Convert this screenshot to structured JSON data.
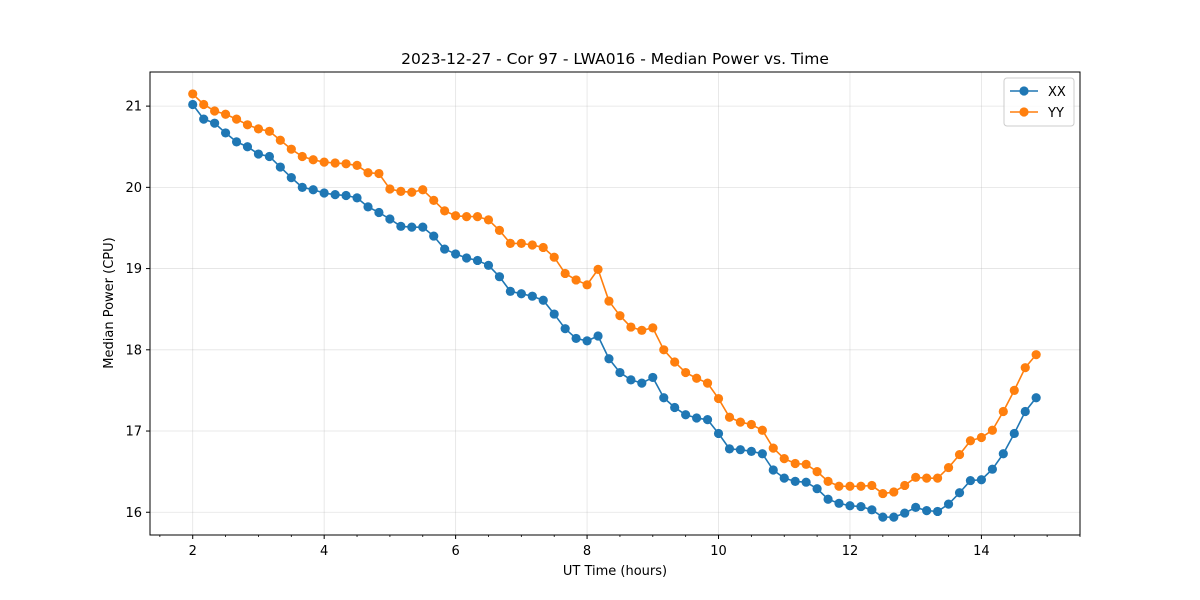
{
  "chart_data": {
    "type": "line",
    "title": "2023-12-27 - Cor 97 - LWA016 - Median Power vs. Time",
    "xlabel": "UT Time (hours)",
    "ylabel": "Median Power (CPU)",
    "xlim": [
      1.35,
      15.5
    ],
    "ylim": [
      15.72,
      21.42
    ],
    "xticks": [
      2,
      4,
      6,
      8,
      10,
      12,
      14
    ],
    "yticks": [
      16,
      17,
      18,
      19,
      20,
      21
    ],
    "grid": true,
    "legend_position": "top-right",
    "x": [
      2.0,
      2.167,
      2.333,
      2.5,
      2.667,
      2.833,
      3.0,
      3.167,
      3.333,
      3.5,
      3.667,
      3.833,
      4.0,
      4.167,
      4.333,
      4.5,
      4.667,
      4.833,
      5.0,
      5.167,
      5.333,
      5.5,
      5.667,
      5.833,
      6.0,
      6.167,
      6.333,
      6.5,
      6.667,
      6.833,
      7.0,
      7.167,
      7.333,
      7.5,
      7.667,
      7.833,
      8.0,
      8.167,
      8.333,
      8.5,
      8.667,
      8.833,
      9.0,
      9.167,
      9.333,
      9.5,
      9.667,
      9.833,
      10.0,
      10.167,
      10.333,
      10.5,
      10.667,
      10.833,
      11.0,
      11.167,
      11.333,
      11.5,
      11.667,
      11.833,
      12.0,
      12.167,
      12.333,
      12.5,
      12.667,
      12.833,
      13.0,
      13.167,
      13.333,
      13.5,
      13.667,
      13.833,
      14.0,
      14.167,
      14.333,
      14.5,
      14.667,
      14.833
    ],
    "series": [
      {
        "name": "XX",
        "color": "#1f77b4",
        "values": [
          21.02,
          20.84,
          20.79,
          20.67,
          20.56,
          20.5,
          20.41,
          20.38,
          20.25,
          20.12,
          20.0,
          19.97,
          19.93,
          19.91,
          19.9,
          19.87,
          19.76,
          19.69,
          19.61,
          19.52,
          19.51,
          19.51,
          19.4,
          19.24,
          19.18,
          19.13,
          19.1,
          19.04,
          18.9,
          18.72,
          18.69,
          18.66,
          18.61,
          18.44,
          18.26,
          18.14,
          18.11,
          18.17,
          17.89,
          17.72,
          17.63,
          17.59,
          17.66,
          17.41,
          17.29,
          17.2,
          17.16,
          17.14,
          16.97,
          16.78,
          16.77,
          16.75,
          16.72,
          16.52,
          16.42,
          16.38,
          16.37,
          16.29,
          16.16,
          16.11,
          16.08,
          16.07,
          16.03,
          15.94,
          15.94,
          15.99,
          16.06,
          16.02,
          16.01,
          16.1,
          16.24,
          16.39,
          16.4,
          16.53,
          16.72,
          16.97,
          17.24,
          17.41
        ]
      },
      {
        "name": "YY",
        "color": "#ff7f0e",
        "values": [
          21.15,
          21.02,
          20.94,
          20.9,
          20.84,
          20.77,
          20.72,
          20.69,
          20.58,
          20.47,
          20.38,
          20.34,
          20.31,
          20.3,
          20.29,
          20.27,
          20.18,
          20.17,
          19.98,
          19.95,
          19.94,
          19.97,
          19.84,
          19.71,
          19.65,
          19.64,
          19.64,
          19.6,
          19.47,
          19.31,
          19.31,
          19.29,
          19.26,
          19.14,
          18.94,
          18.86,
          18.8,
          18.99,
          18.6,
          18.42,
          18.28,
          18.24,
          18.27,
          18.0,
          17.85,
          17.72,
          17.65,
          17.59,
          17.4,
          17.17,
          17.11,
          17.08,
          17.01,
          16.79,
          16.66,
          16.6,
          16.59,
          16.5,
          16.38,
          16.32,
          16.32,
          16.32,
          16.33,
          16.23,
          16.25,
          16.33,
          16.43,
          16.42,
          16.42,
          16.55,
          16.71,
          16.88,
          16.92,
          17.01,
          17.24,
          17.5,
          17.78,
          17.94
        ]
      }
    ]
  }
}
